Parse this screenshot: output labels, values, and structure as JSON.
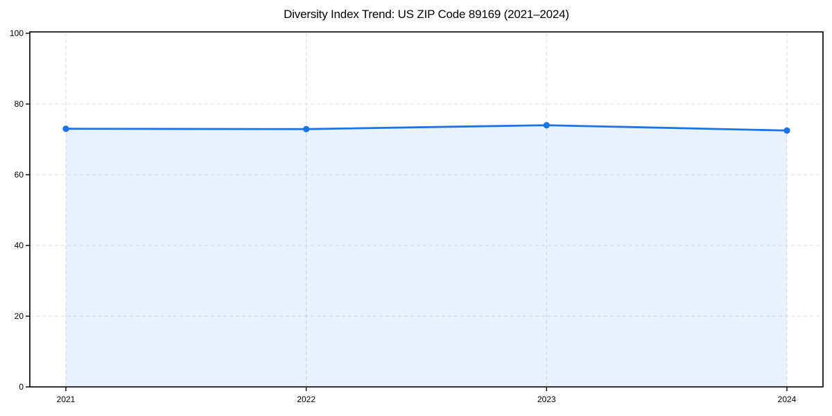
{
  "chart_data": {
    "type": "area",
    "title": "Diversity Index Trend: US ZIP Code 89169 (2021–2024)",
    "x": [
      "2021",
      "2022",
      "2023",
      "2024"
    ],
    "series": [
      {
        "name": "Diversity Index",
        "values": [
          73.0,
          72.9,
          74.0,
          72.5
        ]
      }
    ],
    "xlabel": "",
    "ylabel": "",
    "ylim": [
      0,
      100
    ],
    "yticks": [
      0,
      20,
      40,
      60,
      80,
      100
    ],
    "grid": true,
    "grid_style": "dashed",
    "legend": "none",
    "marker": "circle"
  },
  "colors": {
    "line": "#1a73e8",
    "marker": "#1a73e8",
    "area_fill": "#1a73e8",
    "area_fill_opacity": 0.1,
    "grid": "#dedede",
    "axis": "#000000",
    "tick_text": "#000000",
    "title_text": "#000000",
    "background": "#ffffff"
  }
}
